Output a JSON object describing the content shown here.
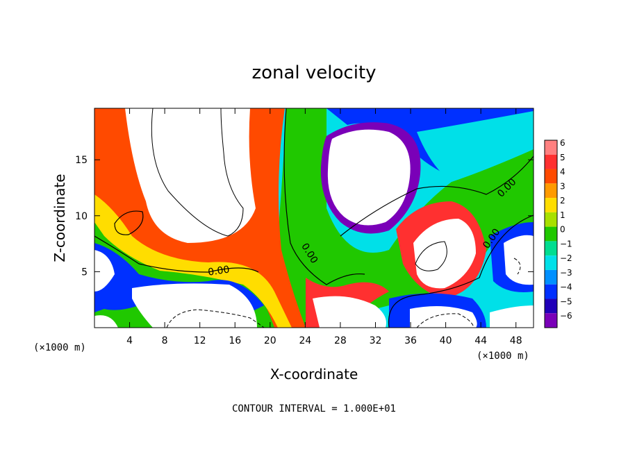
{
  "chart_data": {
    "type": "heatmap",
    "title": "zonal velocity",
    "xlabel": "X-coordinate",
    "ylabel": "Z-coordinate",
    "x_unit_note": "(×1000 m)",
    "y_unit_note": "(×1000 m)",
    "x_ticks": [
      4,
      8,
      12,
      16,
      20,
      24,
      28,
      32,
      36,
      40,
      44,
      48
    ],
    "y_ticks": [
      5,
      10,
      15
    ],
    "xlim": [
      0,
      50
    ],
    "ylim": [
      0,
      19.6
    ],
    "colorbar": {
      "levels": [
        6,
        5,
        4,
        3,
        2,
        1,
        0,
        -1,
        -2,
        -3,
        -4,
        -5,
        -6
      ],
      "labels": [
        "6",
        "5",
        "4",
        "3",
        "2",
        "1",
        "0",
        "−1",
        "−2",
        "−3",
        "−4",
        "−5",
        "−6"
      ],
      "colors": [
        "#ff8080",
        "#ff3030",
        "#ff4a00",
        "#ff9a00",
        "#ffdd00",
        "#a8e000",
        "#20c800",
        "#00dd90",
        "#00e0e8",
        "#0090ff",
        "#0030ff",
        "#2000b8",
        "#7a00b8"
      ]
    },
    "contour_labels": [
      {
        "text": "0.00",
        "x": 14.2,
        "y": 4.8,
        "angle": -8
      },
      {
        "text": "0.00",
        "x": 24.2,
        "y": 6.5,
        "angle": 58
      },
      {
        "text": "0.00",
        "x": 45.5,
        "y": 7.8,
        "angle": -55
      },
      {
        "text": "0.00",
        "x": 47.2,
        "y": 12.3,
        "angle": -45
      }
    ],
    "footer": "CONTOUR INTERVAL = 1.000E+01"
  }
}
